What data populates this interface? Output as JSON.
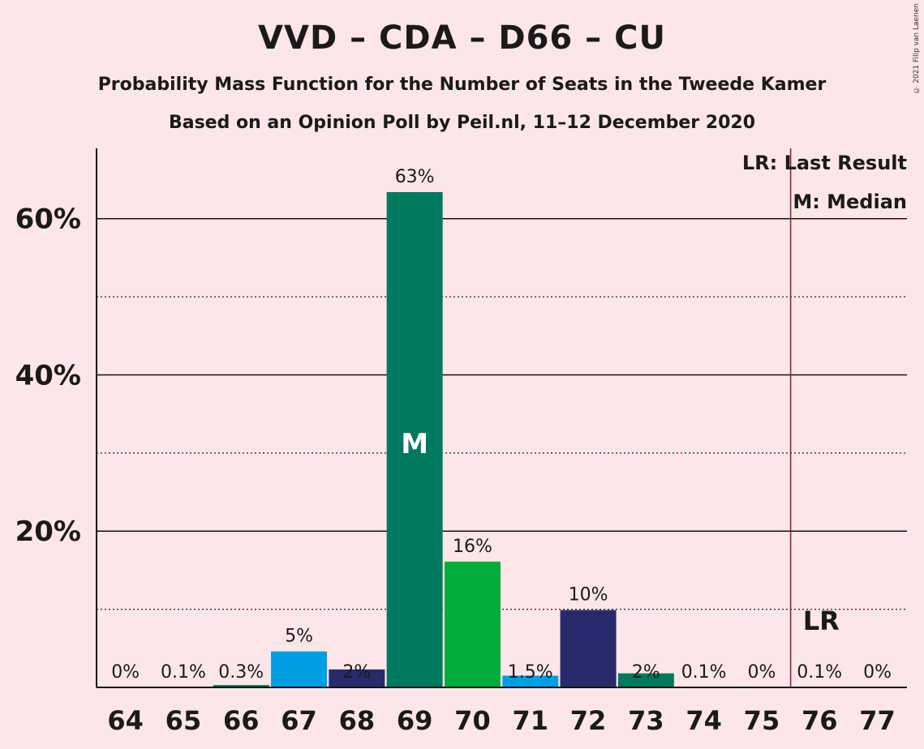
{
  "title": "VVD – CDA – D66 – CU",
  "subtitle1": "Probability Mass Function for the Number of Seats in the Tweede Kamer",
  "subtitle2": "Based on an Opinion Poll by Peil.nl, 11–12 December 2020",
  "copyright": "© 2021 Filip van Laenen",
  "legend": {
    "lr": "LR: Last Result",
    "m": "M: Median"
  },
  "median_marker": "M",
  "lr_marker": "LR",
  "colors": {
    "background": "#fce6e8",
    "lr_line": "#8b1a2a"
  },
  "chart_data": {
    "type": "bar",
    "categories": [
      "64",
      "65",
      "66",
      "67",
      "68",
      "69",
      "70",
      "71",
      "72",
      "73",
      "74",
      "75",
      "76",
      "77"
    ],
    "values": [
      0,
      0.1,
      0.3,
      4.6,
      2.3,
      63.4,
      16.1,
      1.5,
      9.9,
      1.8,
      0.1,
      0,
      0.1,
      0
    ],
    "labels": [
      "0%",
      "0.1%",
      "0.3%",
      "5%",
      "2%",
      "63%",
      "16%",
      "1.5%",
      "10%",
      "2%",
      "0.1%",
      "0%",
      "0.1%",
      "0%"
    ],
    "bar_colors": [
      "#007a5e",
      "#009fe3",
      "#007a5e",
      "#009fe3",
      "#272a6b",
      "#007a5e",
      "#00ad3c",
      "#009fe3",
      "#272a6b",
      "#007a5e",
      "#007a5e",
      "#009fe3",
      "#272a6b",
      "#007a5e"
    ],
    "ylim": [
      0,
      69
    ],
    "yticks": [
      20,
      40,
      60
    ],
    "ytick_labels": [
      "20%",
      "40%",
      "60%"
    ],
    "minor_gridlines": [
      10,
      30,
      50
    ],
    "median_seat": "69",
    "last_result_seat": 75.5,
    "lr_label_seat": "76"
  }
}
